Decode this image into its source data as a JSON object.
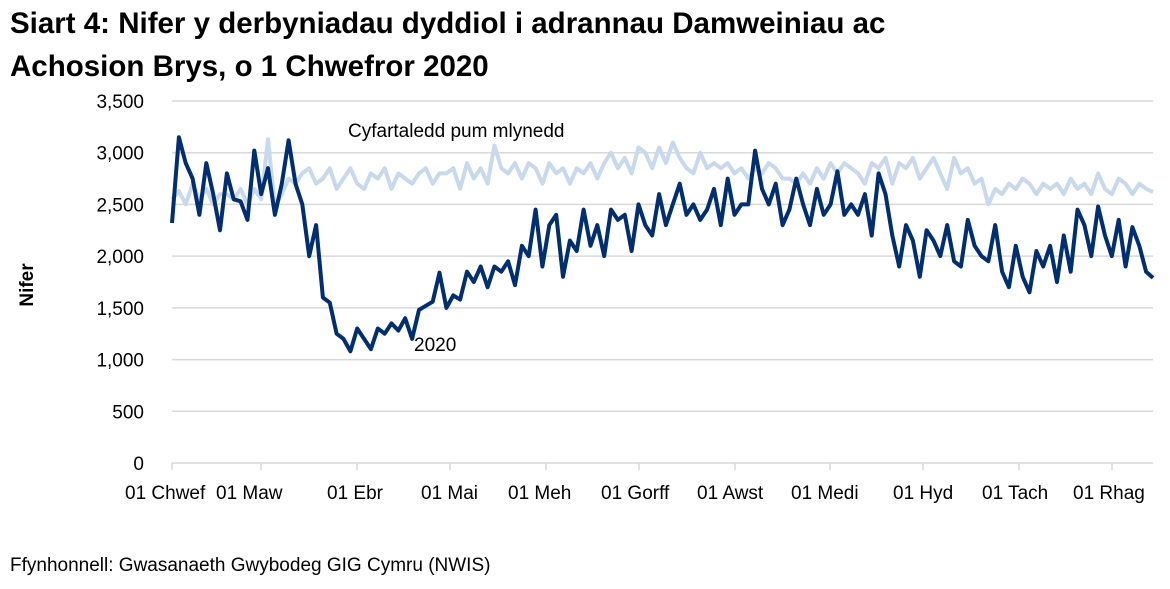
{
  "title": "Siart 4: Nifer y derbyniadau dyddiol i adrannau Damweiniau ac Achosion Brys, o 1 Chwefror 2020",
  "title_lines": [
    "Siart 4: Nifer y derbyniadau dyddiol i adrannau Damweiniau ac",
    "Achosion Brys, o 1 Chwefror 2020"
  ],
  "ylabel": "Nifer",
  "source": "Ffynhonnell: Gwasanaeth Gwybodeg GIG Cymru (NWIS)",
  "colors": {
    "series_2020": "#002e6e",
    "series_avg": "#c8d9ee",
    "grid": "#d9d9d9"
  },
  "chart_data": {
    "type": "line",
    "title": "Siart 4: Nifer y derbyniadau dyddiol i adrannau Damweiniau ac Achosion Brys, o 1 Chwefror 2020",
    "xlabel": "",
    "ylabel": "Nifer",
    "ylim": [
      0,
      3500
    ],
    "yticks": [
      "0",
      "500",
      "1,000",
      "1,500",
      "2,000",
      "2,500",
      "3,000",
      "3,500"
    ],
    "ytick_values": [
      0,
      500,
      1000,
      1500,
      2000,
      2500,
      3000,
      3500
    ],
    "xticks": [
      "01 Chwef",
      "01 Maw",
      "01 Ebr",
      "01 Mai",
      "01 Meh",
      "01 Gorff",
      "01 Awst",
      "01 Medi",
      "01 Hyd",
      "01 Tach",
      "01 Rhag"
    ],
    "grid": true,
    "legend": "inline annotations",
    "annotations": [
      {
        "text": "Cyfartaledd pum mlynedd",
        "series": "avg"
      },
      {
        "text": "2020",
        "series": "2020"
      }
    ],
    "x_note": "Approximate values sampled every ~4 days from 1 Feb 2020 to ~15 Dec 2020",
    "series": [
      {
        "name": "2020",
        "values": [
          2320,
          3150,
          2900,
          2750,
          2400,
          2900,
          2600,
          2250,
          2800,
          2550,
          2530,
          2350,
          3020,
          2600,
          2850,
          2400,
          2700,
          3120,
          2700,
          2500,
          2000,
          2300,
          1600,
          1550,
          1250,
          1200,
          1080,
          1300,
          1200,
          1100,
          1300,
          1250,
          1350,
          1280,
          1400,
          1200,
          1480,
          1520,
          1560,
          1840,
          1500,
          1620,
          1580,
          1850,
          1750,
          1900,
          1700,
          1900,
          1850,
          1950,
          1720,
          2100,
          2000,
          2450,
          1900,
          2300,
          2400,
          1800,
          2150,
          2050,
          2450,
          2100,
          2300,
          2000,
          2450,
          2350,
          2400,
          2050,
          2500,
          2300,
          2200,
          2600,
          2300,
          2500,
          2700,
          2400,
          2500,
          2350,
          2450,
          2650,
          2300,
          2750,
          2400,
          2500,
          2500,
          3020,
          2650,
          2500,
          2700,
          2300,
          2450,
          2750,
          2500,
          2300,
          2650,
          2400,
          2500,
          2820,
          2400,
          2500,
          2400,
          2600,
          2200,
          2800,
          2600,
          2200,
          1900,
          2300,
          2150,
          1800,
          2250,
          2150,
          2000,
          2300,
          1950,
          1900,
          2350,
          2100,
          2000,
          1950,
          2300,
          1850,
          1700,
          2100,
          1800,
          1650,
          2050,
          1900,
          2100,
          1750,
          2200,
          1850,
          2450,
          2300,
          2000,
          2480,
          2200,
          2000,
          2350,
          1900,
          2280,
          2100,
          1850,
          1790
        ]
      },
      {
        "name": "Cyfartaledd pum mlynedd",
        "values": [
          2550,
          2630,
          2500,
          2700,
          2550,
          2650,
          2500,
          2600,
          2600,
          2550,
          2650,
          2500,
          2650,
          2550,
          3130,
          2480,
          2600,
          2750,
          2700,
          2800,
          2850,
          2700,
          2750,
          2850,
          2650,
          2750,
          2850,
          2700,
          2650,
          2800,
          2750,
          2850,
          2650,
          2800,
          2750,
          2700,
          2800,
          2850,
          2700,
          2800,
          2800,
          2850,
          2650,
          2900,
          2750,
          2850,
          2700,
          3070,
          2850,
          2800,
          2900,
          2750,
          2900,
          2850,
          2700,
          2900,
          2800,
          2850,
          2700,
          2850,
          2800,
          2900,
          2750,
          2900,
          3000,
          2850,
          2950,
          2800,
          3050,
          3000,
          2850,
          3050,
          2900,
          3100,
          2950,
          2850,
          2800,
          3000,
          2850,
          2900,
          2850,
          2900,
          2800,
          2850,
          2750,
          2850,
          2800,
          2900,
          2850,
          2750,
          2750,
          2700,
          2800,
          2700,
          2850,
          2750,
          2900,
          2800,
          2900,
          2850,
          2800,
          2700,
          2900,
          2850,
          2950,
          2700,
          2900,
          2850,
          2950,
          2750,
          2850,
          2950,
          2800,
          2650,
          2950,
          2800,
          2850,
          2700,
          2750,
          2500,
          2650,
          2600,
          2700,
          2650,
          2750,
          2700,
          2600,
          2700,
          2650,
          2700,
          2600,
          2750,
          2650,
          2700,
          2600,
          2800,
          2650,
          2600,
          2750,
          2700,
          2600,
          2700,
          2650,
          2620
        ]
      }
    ]
  }
}
